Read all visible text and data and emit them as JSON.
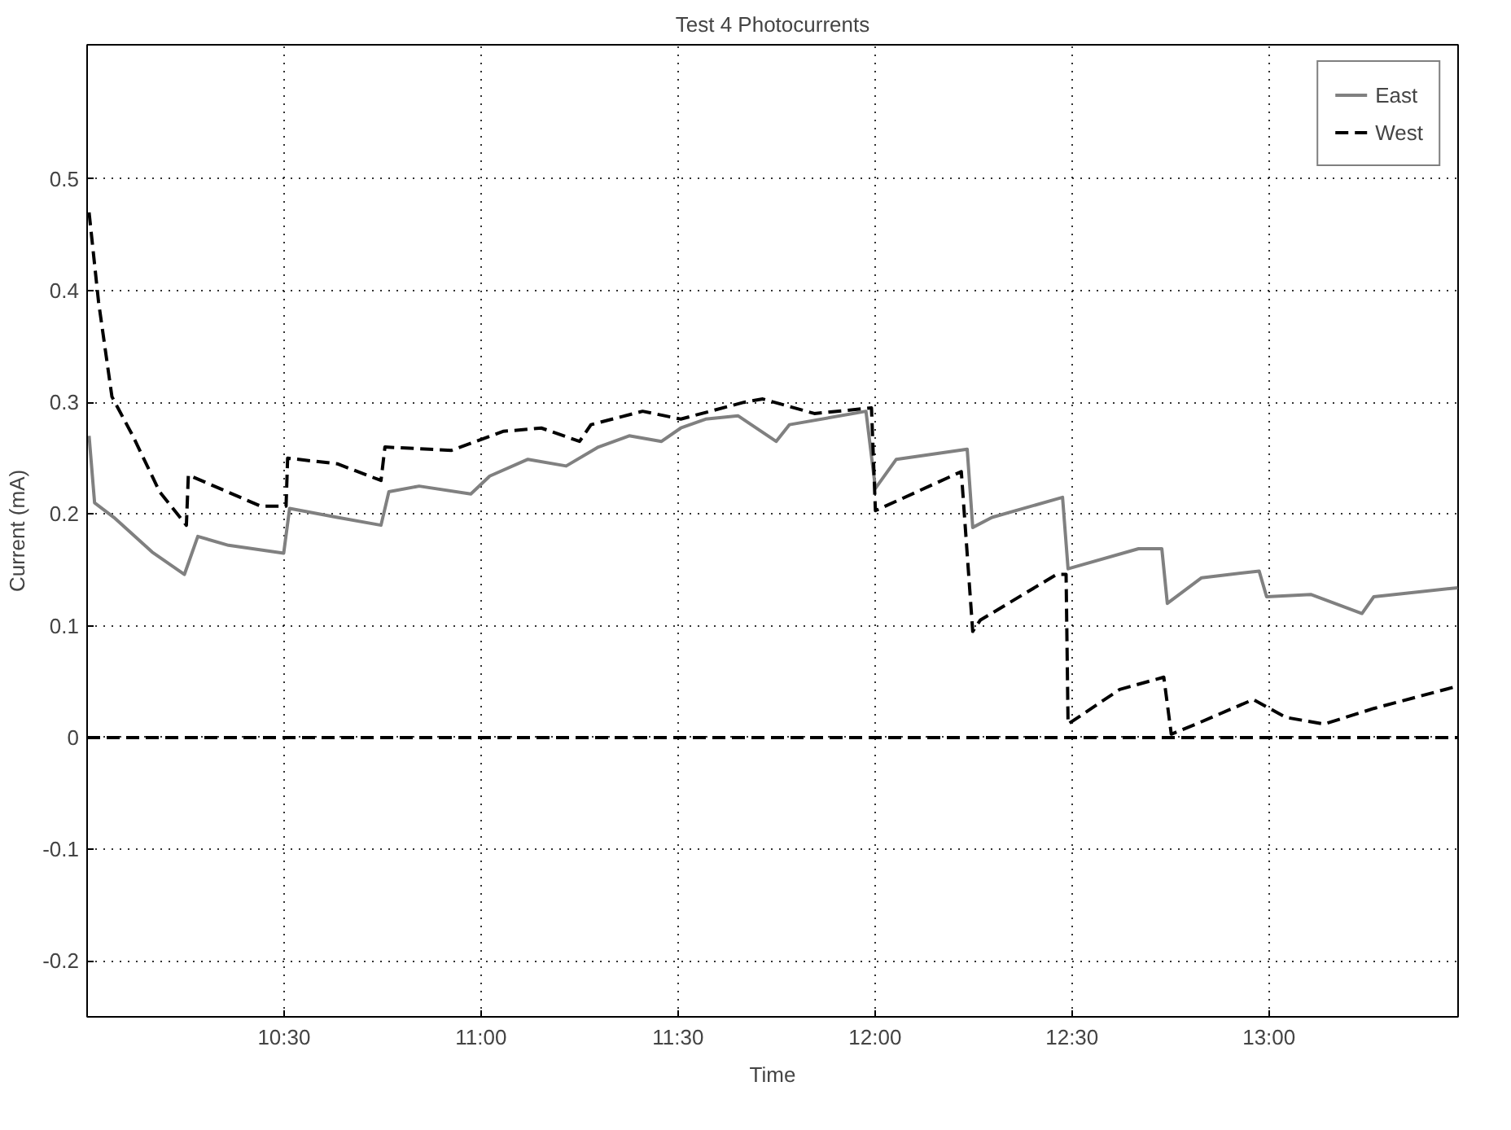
{
  "chart_data": {
    "type": "line",
    "title": "Test 4 Photocurrents",
    "xlabel": "Time",
    "ylabel": "Current (mA)",
    "xlim": [
      10.0,
      13.48
    ],
    "ylim": [
      -0.25,
      0.62
    ],
    "xticks": [
      {
        "value": 10.5,
        "label": "10:30"
      },
      {
        "value": 11.0,
        "label": "11:00"
      },
      {
        "value": 11.5,
        "label": "11:30"
      },
      {
        "value": 12.0,
        "label": "12:00"
      },
      {
        "value": 12.5,
        "label": "12:30"
      },
      {
        "value": 13.0,
        "label": "13:00"
      }
    ],
    "yticks": [
      -0.2,
      -0.1,
      0,
      0.1,
      0.2,
      0.3,
      0.4,
      0.5
    ],
    "grid": true,
    "legend": "top right",
    "ref_lines": [
      {
        "axis": "y",
        "value": 0,
        "label": null,
        "color": "#000000",
        "line_style": "dashed"
      }
    ],
    "series": [
      {
        "name": "East",
        "color": "#808080",
        "line_style": "solid",
        "x": [
          10.005,
          10.019,
          10.068,
          10.165,
          10.247,
          10.281,
          10.359,
          10.499,
          10.514,
          10.635,
          10.746,
          10.766,
          10.843,
          10.974,
          11.022,
          11.119,
          11.216,
          11.298,
          11.376,
          11.458,
          11.507,
          11.57,
          11.652,
          11.749,
          11.783,
          11.977,
          12.001,
          12.054,
          12.234,
          12.248,
          12.297,
          12.476,
          12.49,
          12.669,
          12.728,
          12.742,
          12.829,
          12.975,
          12.994,
          13.106,
          13.236,
          13.266,
          13.479
        ],
        "values": [
          0.27,
          0.21,
          0.197,
          0.166,
          0.146,
          0.18,
          0.172,
          0.165,
          0.205,
          0.197,
          0.19,
          0.22,
          0.225,
          0.218,
          0.234,
          0.249,
          0.243,
          0.26,
          0.27,
          0.265,
          0.277,
          0.285,
          0.288,
          0.265,
          0.28,
          0.292,
          0.223,
          0.249,
          0.258,
          0.188,
          0.197,
          0.215,
          0.151,
          0.169,
          0.169,
          0.12,
          0.143,
          0.149,
          0.126,
          0.128,
          0.111,
          0.126,
          0.134
        ]
      },
      {
        "name": "West",
        "color": "#000000",
        "line_style": "dashed",
        "x": [
          10.005,
          10.029,
          10.063,
          10.116,
          10.184,
          10.252,
          10.257,
          10.441,
          10.505,
          10.509,
          10.635,
          10.746,
          10.756,
          10.925,
          11.056,
          11.153,
          11.25,
          11.279,
          11.41,
          11.507,
          11.667,
          11.715,
          11.846,
          11.991,
          12.001,
          12.219,
          12.248,
          12.267,
          12.461,
          12.485,
          12.49,
          12.621,
          12.733,
          12.752,
          12.815,
          12.96,
          13.043,
          13.14,
          13.266,
          13.479
        ],
        "values": [
          0.47,
          0.39,
          0.305,
          0.27,
          0.22,
          0.19,
          0.235,
          0.207,
          0.207,
          0.25,
          0.245,
          0.23,
          0.26,
          0.257,
          0.274,
          0.277,
          0.265,
          0.28,
          0.292,
          0.285,
          0.3,
          0.303,
          0.29,
          0.295,
          0.203,
          0.238,
          0.095,
          0.105,
          0.146,
          0.146,
          0.012,
          0.043,
          0.054,
          0.003,
          0.012,
          0.034,
          0.018,
          0.012,
          0.026,
          0.046
        ]
      }
    ]
  }
}
